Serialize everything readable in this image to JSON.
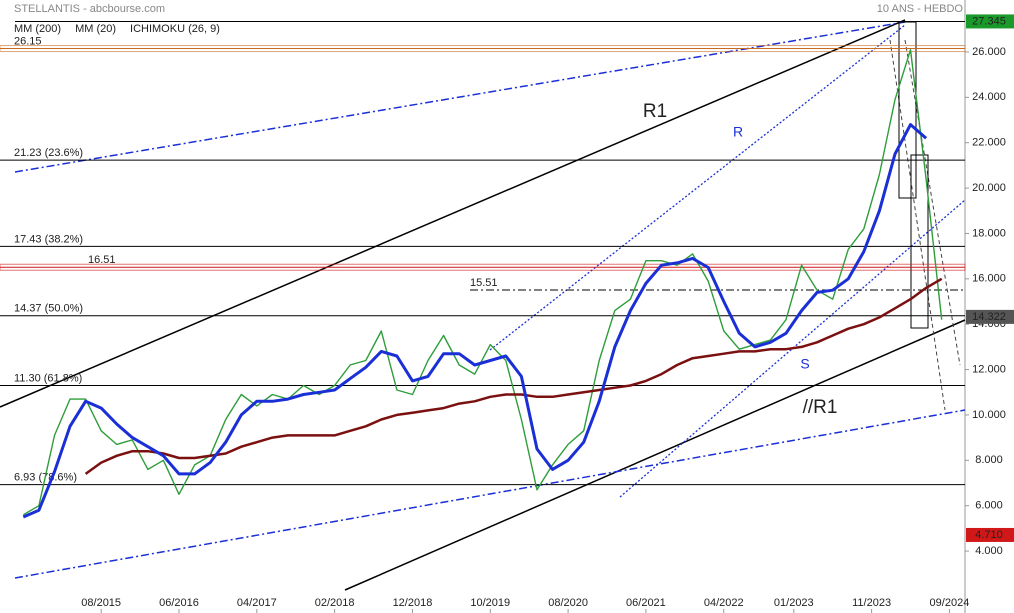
{
  "chart_data": {
    "type": "line",
    "title": "STELLANTIS - abcbourse.com",
    "subtitle": "10 ANS - HEBDO",
    "xlim": [
      "07/2014",
      "11/2024"
    ],
    "xticks": [
      "08/2015",
      "06/2016",
      "04/2017",
      "02/2018",
      "12/2018",
      "10/2019",
      "08/2020",
      "06/2021",
      "04/2022",
      "01/2023",
      "11/2023",
      "09/2024"
    ],
    "ylim": [
      1.27,
      28.29
    ],
    "yticks": [
      {
        "value": 4,
        "label": "4.000"
      },
      {
        "value": 6,
        "label": "6.000"
      },
      {
        "value": 8,
        "label": "8.000"
      },
      {
        "value": 10,
        "label": "10.000"
      },
      {
        "value": 12,
        "label": "12.000"
      },
      {
        "value": 14,
        "label": "14.000"
      },
      {
        "value": 16,
        "label": "16.000"
      },
      {
        "value": 18,
        "label": "18.000"
      },
      {
        "value": 20,
        "label": "20.000"
      },
      {
        "value": 22,
        "label": "22.000"
      },
      {
        "value": 24,
        "label": "24.000"
      },
      {
        "value": 26,
        "label": "26.000"
      }
    ],
    "x": [
      "10/2014",
      "12/2014",
      "02/2015",
      "04/2015",
      "06/2015",
      "08/2015",
      "10/2015",
      "12/2015",
      "02/2016",
      "04/2016",
      "06/2016",
      "08/2016",
      "10/2016",
      "12/2016",
      "02/2017",
      "04/2017",
      "06/2017",
      "08/2017",
      "10/2017",
      "12/2017",
      "02/2018",
      "04/2018",
      "06/2018",
      "08/2018",
      "10/2018",
      "12/2018",
      "02/2019",
      "04/2019",
      "06/2019",
      "08/2019",
      "10/2019",
      "12/2019",
      "02/2020",
      "04/2020",
      "06/2020",
      "08/2020",
      "10/2020",
      "12/2020",
      "02/2021",
      "04/2021",
      "06/2021",
      "08/2021",
      "10/2021",
      "12/2021",
      "02/2022",
      "04/2022",
      "06/2022",
      "08/2022",
      "10/2022",
      "12/2022",
      "02/2023",
      "04/2023",
      "06/2023",
      "08/2023",
      "10/2023",
      "12/2023",
      "02/2024",
      "04/2024",
      "06/2024",
      "08/2024"
    ],
    "price": {
      "color": "#2e9d3a",
      "values": [
        5.6,
        6.0,
        9.1,
        10.7,
        10.7,
        9.3,
        8.7,
        8.9,
        7.6,
        8.0,
        6.5,
        7.8,
        8.2,
        9.8,
        10.9,
        10.4,
        10.9,
        10.7,
        11.3,
        10.9,
        11.3,
        12.2,
        12.4,
        13.7,
        11.1,
        10.9,
        12.4,
        13.5,
        12.2,
        11.8,
        13.1,
        12.4,
        9.8,
        6.7,
        7.8,
        8.7,
        9.3,
        12.4,
        14.6,
        15.1,
        16.8,
        16.8,
        16.6,
        17.1,
        15.9,
        13.7,
        12.9,
        13.1,
        13.3,
        14.2,
        16.6,
        15.5,
        15.1,
        17.3,
        18.2,
        20.6,
        23.9,
        26.1,
        20.4,
        14.2
      ]
    },
    "series": [
      {
        "name": "MM (200)",
        "color": "#7b1010",
        "values": [
          null,
          null,
          null,
          null,
          7.4,
          7.9,
          8.2,
          8.4,
          8.4,
          8.3,
          8.1,
          8.1,
          8.2,
          8.3,
          8.6,
          8.8,
          9.0,
          9.1,
          9.1,
          9.1,
          9.1,
          9.3,
          9.5,
          9.8,
          10.0,
          10.1,
          10.2,
          10.3,
          10.5,
          10.6,
          10.8,
          10.9,
          10.9,
          10.8,
          10.8,
          10.9,
          11.0,
          11.1,
          11.2,
          11.3,
          11.5,
          11.8,
          12.2,
          12.5,
          12.6,
          12.7,
          12.8,
          12.8,
          12.9,
          12.9,
          13.0,
          13.2,
          13.5,
          13.8,
          14.0,
          14.3,
          14.7,
          15.1,
          15.6,
          16.0
        ]
      },
      {
        "name": "MM (20)",
        "color": "#1a2fd6",
        "values": [
          5.5,
          5.8,
          7.5,
          9.5,
          10.6,
          10.3,
          9.6,
          9.0,
          8.6,
          8.2,
          7.4,
          7.4,
          7.9,
          8.8,
          10.0,
          10.6,
          10.6,
          10.7,
          10.9,
          11.0,
          11.1,
          11.6,
          12.1,
          12.8,
          12.6,
          11.5,
          11.7,
          12.7,
          12.7,
          12.2,
          12.4,
          12.6,
          11.7,
          8.5,
          7.6,
          8.0,
          8.8,
          10.6,
          13.0,
          14.6,
          15.8,
          16.6,
          16.7,
          16.9,
          16.5,
          15.0,
          13.6,
          13.0,
          13.2,
          13.6,
          14.6,
          15.4,
          15.5,
          16.0,
          17.2,
          19.0,
          21.5,
          22.8,
          22.2,
          null
        ]
      }
    ],
    "indicator": {
      "name": "ICHIMOKU (26, 9)",
      "color": "#2d6fc0"
    },
    "levels": [
      {
        "value": 26.15,
        "label": "26.15",
        "color": "#c8691e"
      },
      {
        "value": 21.23,
        "label": "21.23  (23.6%)",
        "color": "#000000"
      },
      {
        "value": 17.43,
        "label": "17.43  (38.2%)",
        "color": "#000000"
      },
      {
        "value": 16.51,
        "label": "16.51",
        "color": "#d01818"
      },
      {
        "value": 15.51,
        "label": "15.51",
        "color": "#000000"
      },
      {
        "value": 14.37,
        "label": "14.37  (50.0%)",
        "color": "#000000"
      },
      {
        "value": 11.3,
        "label": "11.30  (61.8%)",
        "color": "#000000"
      },
      {
        "value": 6.93,
        "label": "6.93  (78.6%)",
        "color": "#000000"
      }
    ],
    "markers": [
      {
        "value": 27.345,
        "label": "27.345",
        "color": "#1a9a2a"
      },
      {
        "value": 14.322,
        "label": "14.322",
        "color": "#555555"
      },
      {
        "value": 4.71,
        "label": "4.710",
        "color": "#d01818"
      }
    ],
    "annotations": [
      "R1",
      "R",
      "S",
      "//R1"
    ]
  }
}
